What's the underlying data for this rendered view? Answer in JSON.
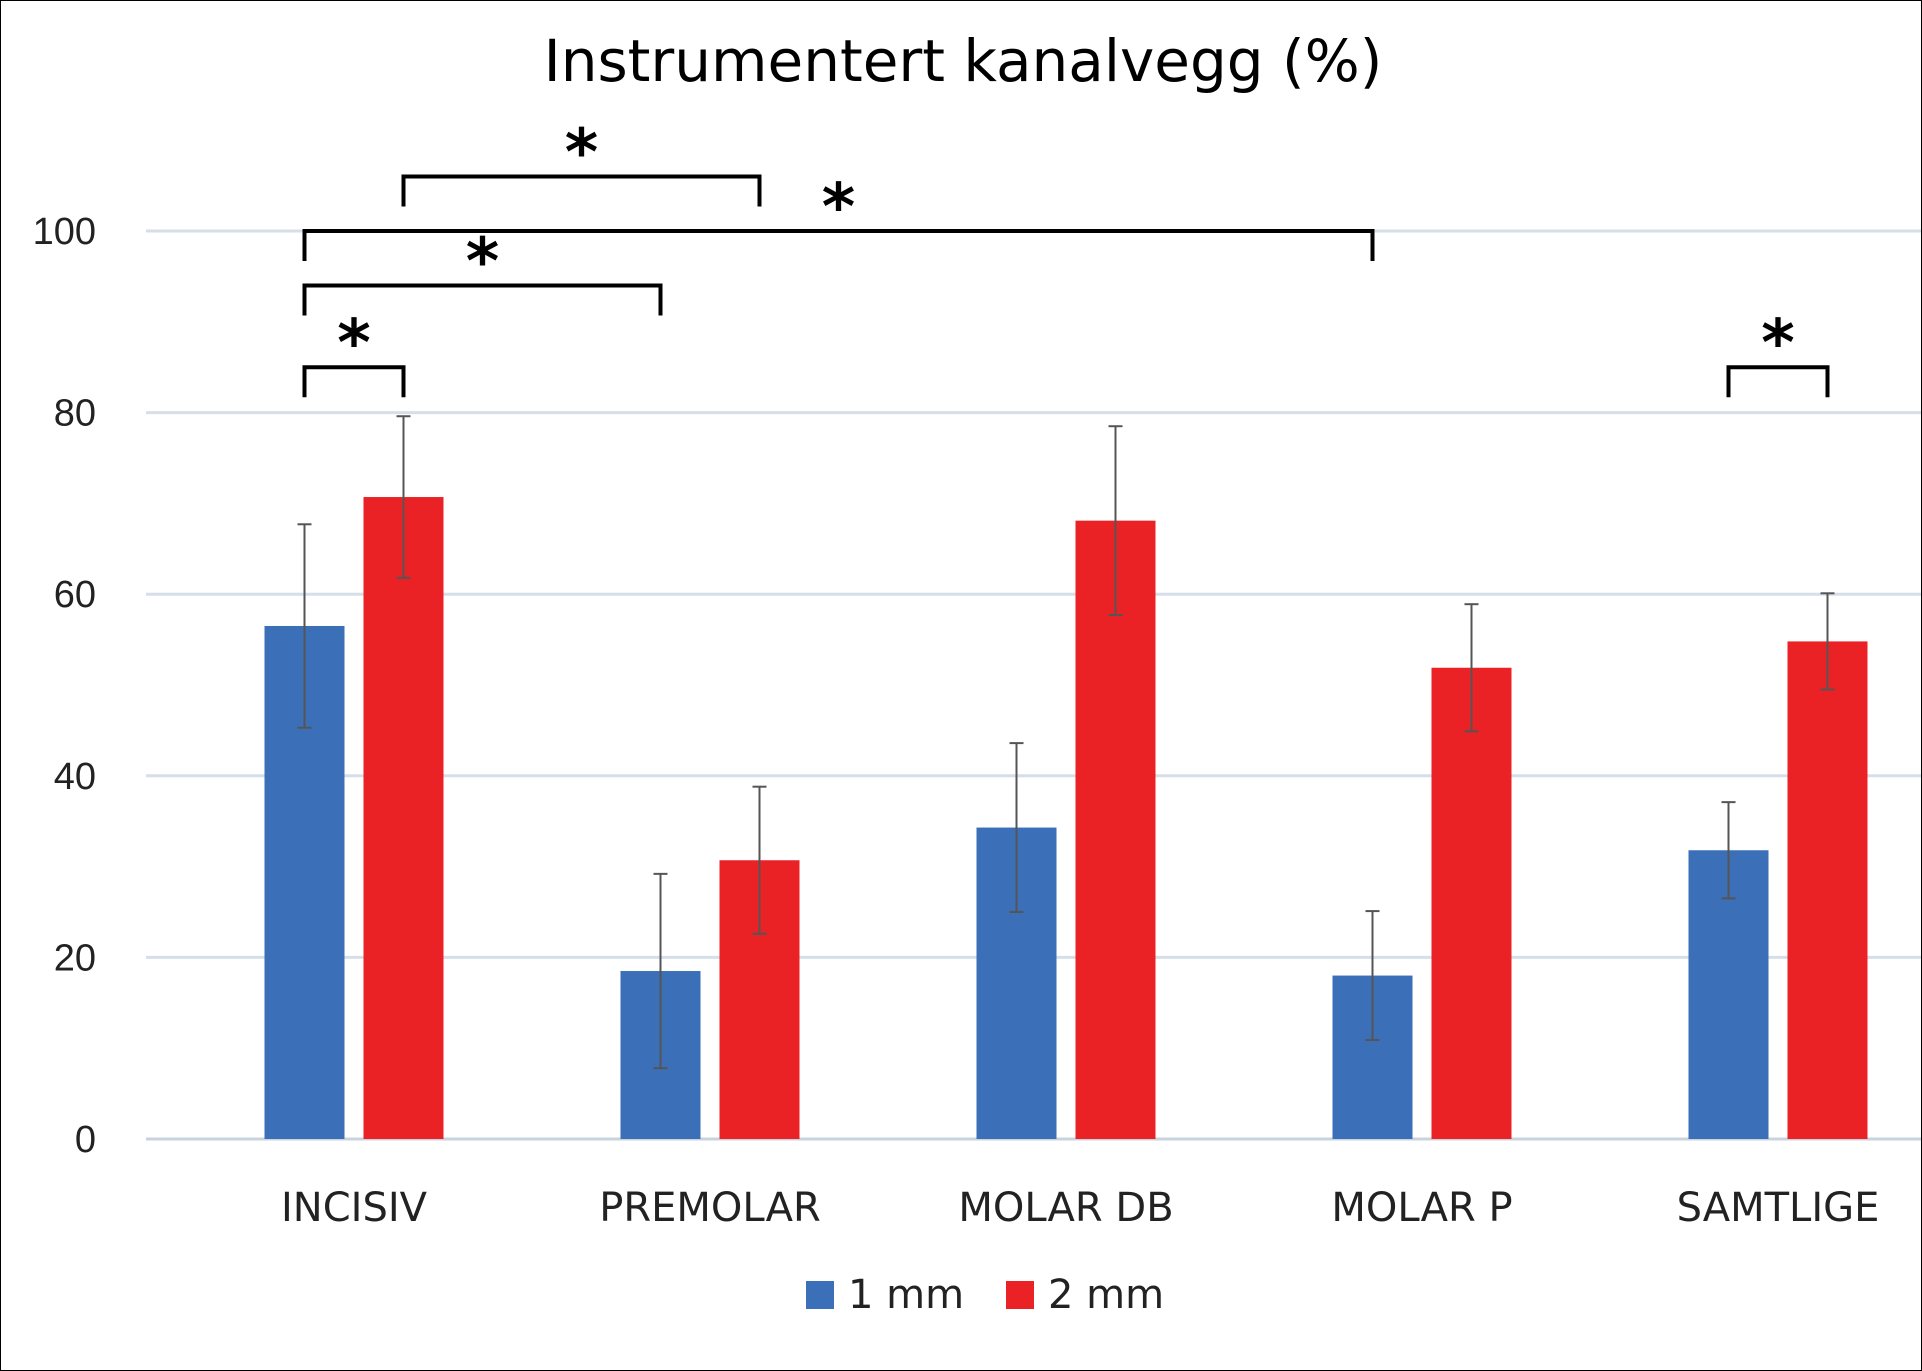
{
  "chart_data": {
    "type": "bar",
    "title": "Instrumentert kanalvegg (%)",
    "xlabel": "",
    "ylabel": "",
    "ylim": [
      0,
      100
    ],
    "yticks": [
      0,
      20,
      40,
      60,
      80,
      100
    ],
    "grid": true,
    "legend_position": "bottom",
    "categories": [
      "INCISIV",
      "PREMOLAR",
      "MOLAR DB",
      "MOLAR P",
      "SAMTLIGE"
    ],
    "series": [
      {
        "name": "1 mm",
        "color": "#3b6fb8",
        "values": [
          56.5,
          18.5,
          34.3,
          18.0,
          31.8
        ],
        "error": [
          11.2,
          10.7,
          9.3,
          7.1,
          5.3
        ]
      },
      {
        "name": "2 mm",
        "color": "#ea2226",
        "values": [
          70.7,
          30.7,
          68.1,
          51.9,
          54.8
        ],
        "error": [
          8.9,
          8.1,
          10.4,
          7.0,
          5.3
        ]
      }
    ],
    "significance": [
      {
        "label": "*",
        "from": {
          "category": 0,
          "series": 0
        },
        "to": {
          "category": 0,
          "series": 1
        },
        "level": 85
      },
      {
        "label": "*",
        "from": {
          "category": 0,
          "series": 0
        },
        "to": {
          "category": 1,
          "series": 0
        },
        "level": 94
      },
      {
        "label": "*",
        "from": {
          "category": 0,
          "series": 0
        },
        "to": {
          "category": 3,
          "series": 0
        },
        "level": 100
      },
      {
        "label": "*",
        "from": {
          "category": 0,
          "series": 1
        },
        "to": {
          "category": 1,
          "series": 1
        },
        "level": 106
      },
      {
        "label": "*",
        "from": {
          "category": 4,
          "series": 0
        },
        "to": {
          "category": 4,
          "series": 1
        },
        "level": 85
      }
    ]
  }
}
